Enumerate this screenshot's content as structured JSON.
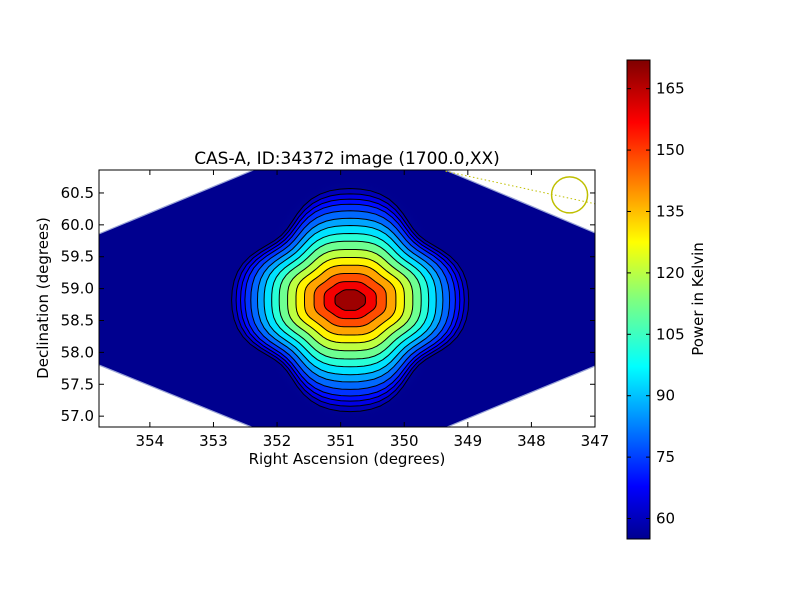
{
  "chart_data": {
    "type": "heatmap",
    "title": "CAS-A, ID:34372 image (1700.0,XX)",
    "xlabel": "Right Ascension (degrees)",
    "ylabel": "Declination (degrees)",
    "xlim": [
      354.8,
      347.0
    ],
    "ylim": [
      56.83,
      60.86
    ],
    "x_ticks": [
      354,
      353,
      352,
      351,
      350,
      349,
      348,
      347
    ],
    "y_ticks": [
      57.0,
      57.5,
      58.0,
      58.5,
      59.0,
      59.5,
      60.0,
      60.5
    ],
    "x_tick_labels": [
      "354",
      "353",
      "352",
      "351",
      "350",
      "349",
      "348",
      "347"
    ],
    "y_tick_labels": [
      "57.0",
      "57.5",
      "58.0",
      "58.5",
      "59.0",
      "59.5",
      "60.0",
      "60.5"
    ],
    "colorbar": {
      "label": "Power in Kelvin",
      "range": [
        55,
        172
      ],
      "ticks": [
        60,
        75,
        90,
        105,
        120,
        135,
        150,
        165
      ],
      "tick_labels": [
        "60",
        "75",
        "90",
        "105",
        "120",
        "135",
        "150",
        "165"
      ]
    },
    "source": {
      "name": "CAS-A",
      "ra": 350.85,
      "dec": 58.82,
      "peak_kelvin": 172
    },
    "beam_marker": {
      "ra": 347.4,
      "dec": 60.47,
      "color": "#bfbf00"
    },
    "background_kelvin": 56,
    "contour_levels_kelvin": [
      58.5,
      63,
      67.5,
      72,
      78,
      85,
      92,
      100,
      108,
      117,
      126,
      135,
      145,
      155,
      165
    ]
  }
}
